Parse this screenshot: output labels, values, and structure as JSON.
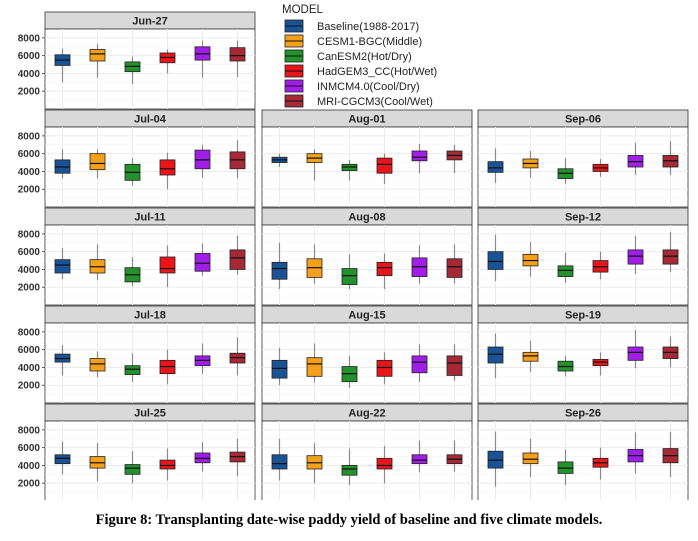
{
  "figure": {
    "caption": "Figure 8: Transplanting date-wise paddy yield of baseline and five climate models."
  },
  "legend": {
    "title": "MODEL",
    "placement": "top-right"
  },
  "chart_data": {
    "type": "box",
    "ylim": [
      0,
      9000
    ],
    "yticks": [
      2000,
      4000,
      6000,
      8000
    ],
    "grid": true,
    "series": [
      {
        "name": "Baseline(1988-2017)",
        "color": "#1a5296"
      },
      {
        "name": "CESM1-BGC(Middle)",
        "color": "#f5a01a"
      },
      {
        "name": "CanESM2(Hot/Dry)",
        "color": "#23922c"
      },
      {
        "name": "HadGEM3_CC(Hot/Wet)",
        "color": "#e8151b"
      },
      {
        "name": "INMCM4.0(Cool/Dry)",
        "color": "#a01ee8"
      },
      {
        "name": "MRI-CGCM3(Cool/Wet)",
        "color": "#a52a36"
      }
    ],
    "panels": [
      {
        "label": "Jun-27",
        "boxes": [
          [
            3000,
            4900,
            5500,
            6100,
            6800
          ],
          [
            3500,
            5400,
            6200,
            6700,
            7300
          ],
          [
            2800,
            4200,
            4800,
            5300,
            5900
          ],
          [
            4000,
            5200,
            5800,
            6300,
            6700
          ],
          [
            3500,
            5500,
            6200,
            7000,
            7700
          ],
          [
            3600,
            5400,
            6000,
            6900,
            7700
          ]
        ]
      },
      {
        "label": "Jul-04",
        "boxes": [
          [
            3200,
            3800,
            4500,
            5300,
            6500
          ],
          [
            3200,
            4200,
            4900,
            6000,
            6500
          ],
          [
            2400,
            3000,
            3900,
            4800,
            5500
          ],
          [
            2000,
            3600,
            4300,
            5300,
            6100
          ],
          [
            3300,
            4300,
            5300,
            6400,
            7000
          ],
          [
            3200,
            4300,
            5300,
            6200,
            7500
          ]
        ]
      },
      {
        "label": "Aug-01",
        "boxes": [
          [
            4500,
            5000,
            5300,
            5600,
            6000
          ],
          [
            3000,
            5000,
            5500,
            6000,
            6500
          ],
          [
            3000,
            4100,
            4500,
            4800,
            5300
          ],
          [
            2600,
            3800,
            4800,
            5500,
            6000
          ],
          [
            3800,
            5200,
            5600,
            6300,
            7100
          ],
          [
            3800,
            5300,
            5800,
            6300,
            7000
          ]
        ]
      },
      {
        "label": "Sep-06",
        "boxes": [
          [
            2700,
            3900,
            4400,
            5100,
            6600
          ],
          [
            3300,
            4400,
            4900,
            5400,
            6300
          ],
          [
            2600,
            3200,
            3800,
            4300,
            5500
          ],
          [
            3400,
            4000,
            4400,
            4800,
            5400
          ],
          [
            3600,
            4500,
            5100,
            5800,
            7200
          ],
          [
            3600,
            4500,
            5200,
            5800,
            7400
          ]
        ]
      },
      {
        "label": "Jul-11",
        "boxes": [
          [
            2900,
            3600,
            4500,
            5100,
            6400
          ],
          [
            2800,
            3600,
            4300,
            5100,
            6800
          ],
          [
            2100,
            2600,
            3400,
            4200,
            5400
          ],
          [
            2000,
            3600,
            4100,
            5400,
            6700
          ],
          [
            3300,
            3800,
            4700,
            5800,
            6900
          ],
          [
            3400,
            4000,
            5300,
            6200,
            7800
          ]
        ]
      },
      {
        "label": "Aug-08",
        "boxes": [
          [
            1800,
            2900,
            4100,
            4800,
            7000
          ],
          [
            2400,
            3100,
            4200,
            5200,
            6800
          ],
          [
            1800,
            2300,
            3300,
            4100,
            5700
          ],
          [
            1800,
            3300,
            4200,
            4800,
            5800
          ],
          [
            2400,
            3200,
            4300,
            5300,
            6700
          ],
          [
            2400,
            3100,
            4300,
            5200,
            6800
          ]
        ]
      },
      {
        "label": "Sep-12",
        "boxes": [
          [
            2700,
            4000,
            4900,
            6000,
            7900
          ],
          [
            3200,
            4400,
            5000,
            5700,
            7100
          ],
          [
            2500,
            3200,
            3900,
            4400,
            5900
          ],
          [
            2900,
            3700,
            4300,
            5000,
            6000
          ],
          [
            3500,
            4600,
            5500,
            6200,
            7800
          ],
          [
            3700,
            4600,
            5500,
            6200,
            8200
          ]
        ]
      },
      {
        "label": "Jul-18",
        "boxes": [
          [
            3100,
            4600,
            5000,
            5500,
            6500
          ],
          [
            2900,
            3600,
            4400,
            5000,
            5800
          ],
          [
            2400,
            3200,
            3800,
            4200,
            5600
          ],
          [
            2100,
            3300,
            4100,
            4800,
            6000
          ],
          [
            3300,
            4200,
            4800,
            5300,
            6700
          ],
          [
            3100,
            4500,
            5100,
            5600,
            7400
          ]
        ]
      },
      {
        "label": "Aug-15",
        "boxes": [
          [
            2000,
            2800,
            3900,
            4800,
            6200
          ],
          [
            2300,
            3000,
            4400,
            5100,
            6700
          ],
          [
            1700,
            2400,
            3300,
            4100,
            5300
          ],
          [
            2100,
            3000,
            4000,
            4800,
            5700
          ],
          [
            2400,
            3400,
            4600,
            5300,
            6600
          ],
          [
            2500,
            3100,
            4500,
            5300,
            6600
          ]
        ]
      },
      {
        "label": "Sep-19",
        "boxes": [
          [
            2800,
            4500,
            5500,
            6300,
            7800
          ],
          [
            3500,
            4700,
            5300,
            5700,
            7000
          ],
          [
            3000,
            3600,
            4100,
            4700,
            5300
          ],
          [
            3100,
            4200,
            4600,
            4900,
            5700
          ],
          [
            3900,
            4800,
            5700,
            6300,
            8200
          ],
          [
            4000,
            5000,
            5700,
            6300,
            7500
          ]
        ]
      },
      {
        "label": "Jul-25",
        "boxes": [
          [
            3000,
            4200,
            4800,
            5200,
            6700
          ],
          [
            2200,
            3700,
            4300,
            5000,
            6500
          ],
          [
            2000,
            3000,
            3700,
            4100,
            5600
          ],
          [
            2300,
            3600,
            4000,
            4600,
            5900
          ],
          [
            3300,
            4300,
            4800,
            5400,
            6600
          ],
          [
            2800,
            4400,
            5000,
            5500,
            7000
          ]
        ]
      },
      {
        "label": "Aug-22",
        "boxes": [
          [
            2300,
            3600,
            4200,
            5200,
            7000
          ],
          [
            2000,
            3600,
            4300,
            5100,
            6500
          ],
          [
            1800,
            2900,
            3600,
            4000,
            5900
          ],
          [
            2000,
            3600,
            4000,
            4800,
            6200
          ],
          [
            3200,
            4200,
            4600,
            5200,
            6800
          ],
          [
            3300,
            4200,
            4700,
            5200,
            6800
          ]
        ]
      },
      {
        "label": "Sep-26",
        "boxes": [
          [
            1600,
            3700,
            4600,
            5600,
            7800
          ],
          [
            2700,
            4200,
            4700,
            5400,
            7000
          ],
          [
            1800,
            3100,
            3700,
            4400,
            5800
          ],
          [
            2400,
            3800,
            4300,
            4800,
            6000
          ],
          [
            3100,
            4400,
            5100,
            5800,
            7700
          ],
          [
            2700,
            4300,
            5100,
            5900,
            7800
          ]
        ]
      }
    ]
  }
}
